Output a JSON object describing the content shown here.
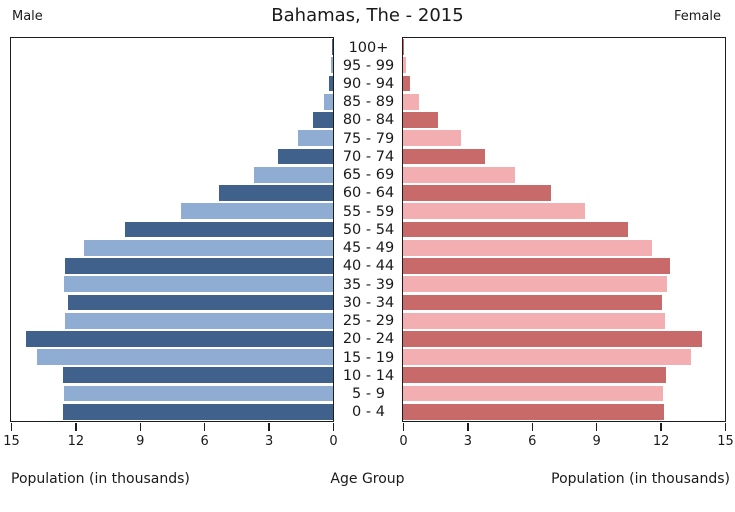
{
  "header": {
    "title": "Bahamas, The - 2015",
    "left_side_label": "Male",
    "right_side_label": "Female"
  },
  "axis": {
    "left_xlabel": "Population (in thousands)",
    "center_xlabel": "Age Group",
    "right_xlabel": "Population (in thousands)",
    "tick_values": [
      0,
      3,
      6,
      9,
      12,
      15
    ],
    "x_max_each_side": 15
  },
  "colors": {
    "male_dark": "#3f618c",
    "male_light": "#8fadd2",
    "female_dark": "#c96a6a",
    "female_light": "#f2aeb0",
    "frame": "#1c1c1c",
    "background": "#ffffff",
    "text": "#1a1a1a"
  },
  "chart_data": {
    "type": "bar",
    "subtype": "population-pyramid",
    "title": "Bahamas, The - 2015",
    "units": "thousands of people",
    "orientation": "horizontal, male bars extend left, female bars extend right",
    "categories_order": "oldest age group first (top) to youngest (bottom)",
    "categories": [
      "100+",
      "95 - 99",
      "90 - 94",
      "85 - 89",
      "80 - 84",
      "75 - 79",
      "70 - 74",
      "65 - 69",
      "60 - 64",
      "55 - 59",
      "50 - 54",
      "45 - 49",
      "40 - 44",
      "35 - 39",
      "30 - 34",
      "25 - 29",
      "20 - 24",
      "15 - 19",
      "10 - 14",
      "5 - 9",
      "0 - 4"
    ],
    "series": [
      {
        "name": "Male",
        "values": [
          0.04,
          0.1,
          0.2,
          0.4,
          0.92,
          1.65,
          2.55,
          3.7,
          5.3,
          7.1,
          9.7,
          11.6,
          12.5,
          12.55,
          12.35,
          12.5,
          14.3,
          13.8,
          12.6,
          12.55,
          12.6
        ]
      },
      {
        "name": "Female",
        "values": [
          0.06,
          0.15,
          0.32,
          0.75,
          1.65,
          2.7,
          3.8,
          5.2,
          6.9,
          8.5,
          10.5,
          11.6,
          12.45,
          12.3,
          12.05,
          12.2,
          13.95,
          13.4,
          12.25,
          12.1,
          12.15
        ]
      }
    ],
    "xlabel": "Population (in thousands)",
    "ylabel": "Age Group",
    "xlim_each_side": [
      0,
      15
    ],
    "x_ticks": [
      0,
      3,
      6,
      9,
      12,
      15
    ],
    "grid": false,
    "legend": "none; sides labeled Male (left) and Female (right)",
    "bar_color_pattern": "rows alternate dark/light shades; youngest row (0 - 4) is dark, alternating upward"
  }
}
